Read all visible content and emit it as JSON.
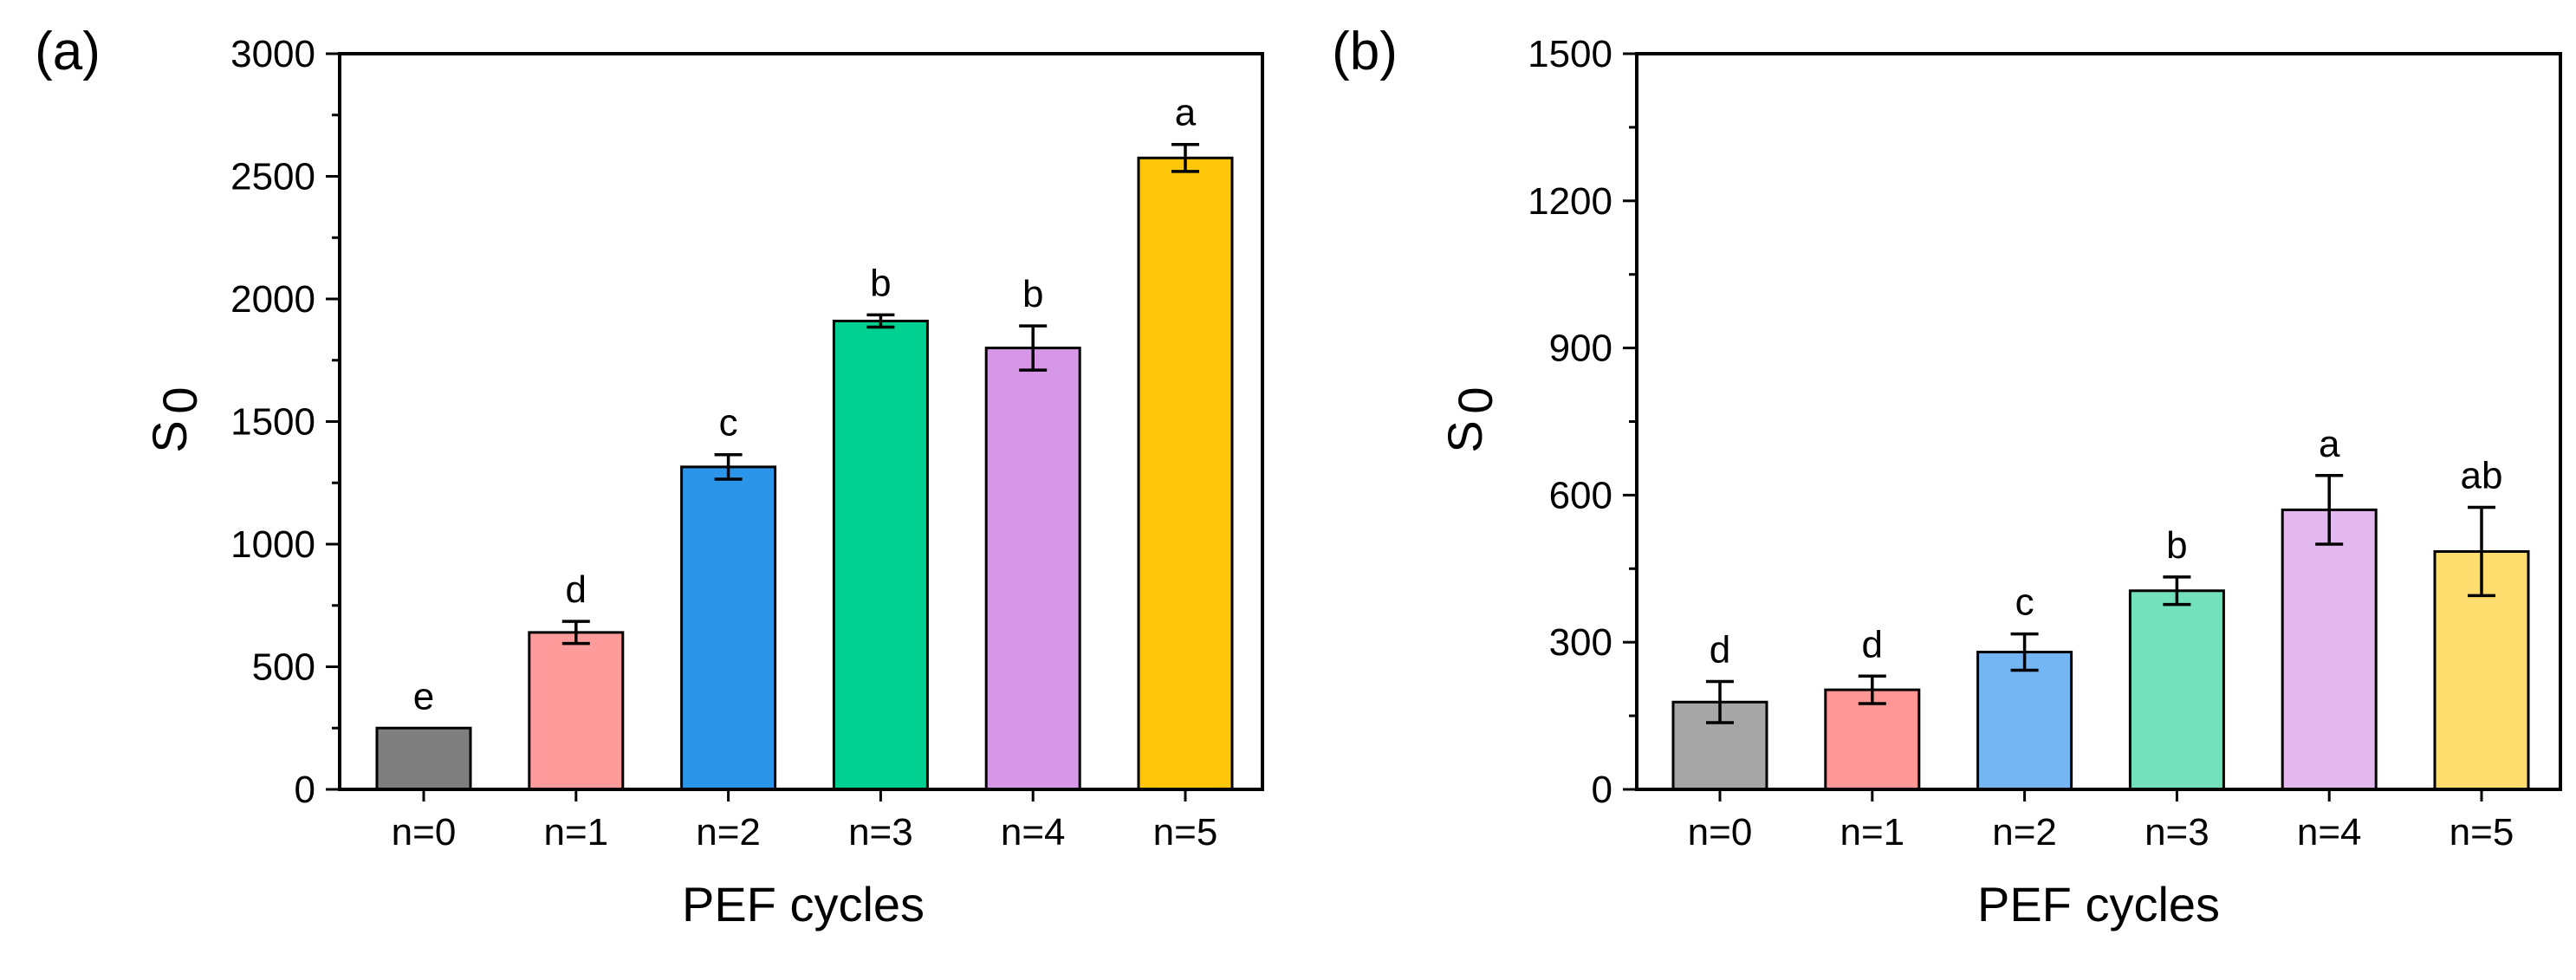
{
  "chart_data": [
    {
      "type": "bar",
      "panel_label": "(a)",
      "xlabel": "PEF cycles",
      "ylabel_main": "S",
      "ylabel_sub": "0",
      "categories": [
        "n=0",
        "n=1",
        "n=2",
        "n=3",
        "n=4",
        "n=5"
      ],
      "values": [
        250,
        640,
        1315,
        1910,
        1800,
        2575
      ],
      "errors": [
        0,
        45,
        50,
        25,
        90,
        55
      ],
      "significance": [
        "e",
        "d",
        "c",
        "b",
        "b",
        "a"
      ],
      "colors": [
        "#7f7f7f",
        "#ff9b9b",
        "#2b95ea",
        "#00d190",
        "#d697e6",
        "#ffc60a"
      ],
      "ylim": [
        0,
        3000
      ],
      "yticks": [
        0,
        500,
        1000,
        1500,
        2000,
        2500,
        3000
      ],
      "ytick_labels": [
        "0",
        "500",
        "1000",
        "1500",
        "2000",
        "2500",
        "3000"
      ]
    },
    {
      "type": "bar",
      "panel_label": "(b)",
      "xlabel": "PEF cycles",
      "ylabel_main": "S",
      "ylabel_sub": "0",
      "categories": [
        "n=0",
        "n=1",
        "n=2",
        "n=3",
        "n=4",
        "n=5"
      ],
      "values": [
        178,
        203,
        280,
        405,
        570,
        485
      ],
      "errors": [
        42,
        28,
        37,
        28,
        70,
        90
      ],
      "significance": [
        "d",
        "d",
        "c",
        "b",
        "a",
        "ab"
      ],
      "colors": [
        "#a6a6a6",
        "#ff9797",
        "#74b6f4",
        "#74e1bd",
        "#e2b8ee",
        "#ffdc6e"
      ],
      "ylim": [
        0,
        1500
      ],
      "yticks": [
        0,
        300,
        600,
        900,
        1200,
        1500
      ],
      "ytick_labels": [
        "0",
        "300",
        "600",
        "900",
        "1200",
        "1500"
      ]
    }
  ]
}
